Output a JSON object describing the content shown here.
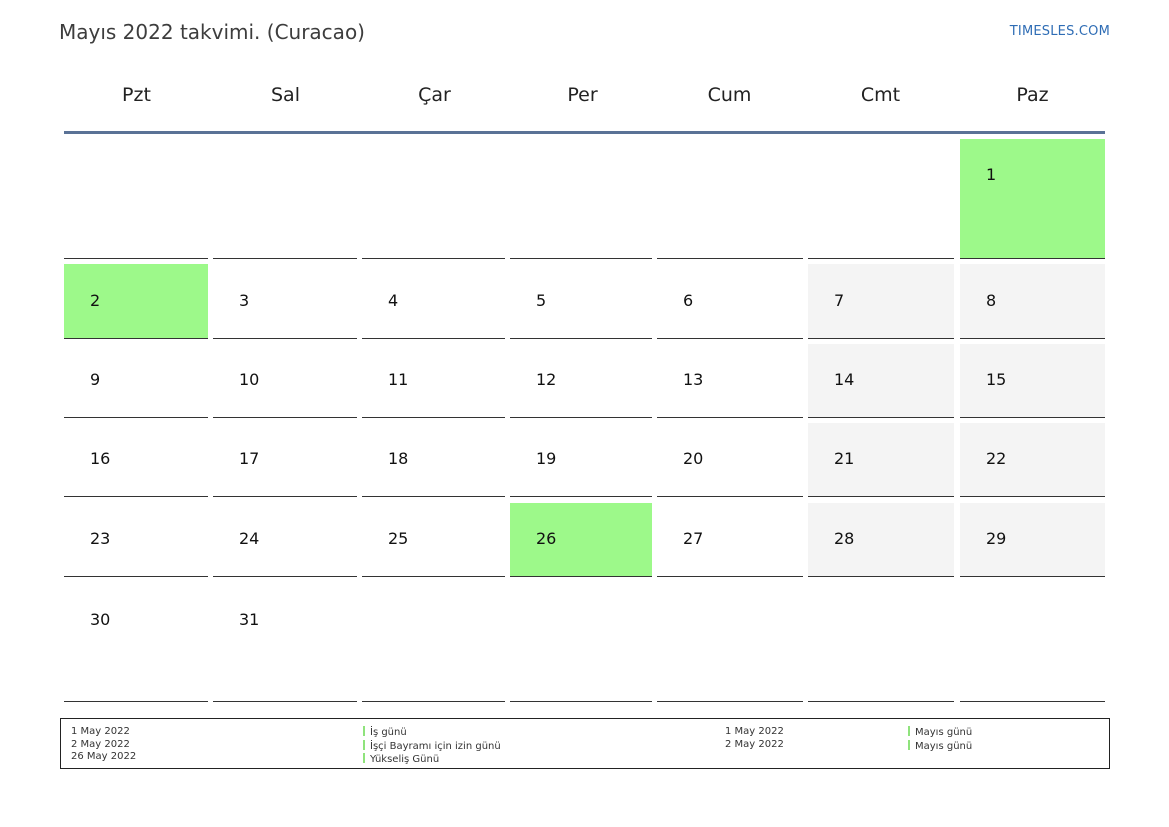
{
  "header": {
    "title": "Mayıs 2022 takvimi. (Curacao)",
    "site": "TIMESLES.COM"
  },
  "weekdays": [
    "Pzt",
    "Sal",
    "Çar",
    "Per",
    "Cum",
    "Cmt",
    "Paz"
  ],
  "weeks": [
    [
      "",
      "",
      "",
      "",
      "",
      "",
      "1"
    ],
    [
      "2",
      "3",
      "4",
      "5",
      "6",
      "7",
      "8"
    ],
    [
      "9",
      "10",
      "11",
      "12",
      "13",
      "14",
      "15"
    ],
    [
      "16",
      "17",
      "18",
      "19",
      "20",
      "21",
      "22"
    ],
    [
      "23",
      "24",
      "25",
      "26",
      "27",
      "28",
      "29"
    ],
    [
      "30",
      "31",
      "",
      "",
      "",
      "",
      ""
    ]
  ],
  "holidays": [
    "1",
    "2",
    "26"
  ],
  "colors": {
    "holiday": "#9df98a",
    "weekend": "#f4f4f4",
    "header_line": "#5a7296",
    "link": "#2f6db5"
  },
  "legend": {
    "dates_1": [
      "1 May 2022",
      "2 May 2022",
      "26 May 2022"
    ],
    "names_1": [
      "İş günü",
      "İşçi Bayramı için izin günü",
      "Yükseliş Günü"
    ],
    "dates_2": [
      "1 May 2022",
      "2 May 2022"
    ],
    "names_2": [
      "Mayıs günü",
      "Mayıs günü"
    ]
  }
}
